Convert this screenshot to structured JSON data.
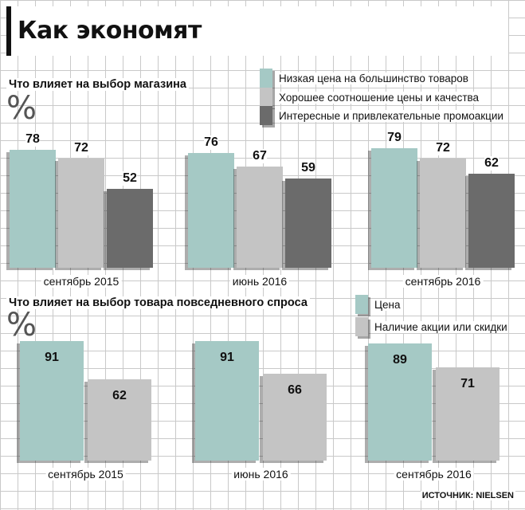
{
  "title": "Как экономят",
  "source": "ИСТОЧНИК: NIELSEN",
  "chart_data": [
    {
      "type": "bar",
      "title": "Что влияет на выбор магазина",
      "unit": "%",
      "categories": [
        "сентябрь 2015",
        "июнь 2016",
        "сентябрь 2016"
      ],
      "series": [
        {
          "name": "Низкая цена на большинство товаров",
          "color": "#a5c9c5",
          "values": [
            78,
            76,
            79
          ]
        },
        {
          "name": "Хорошее соотношение цены и качества",
          "color": "#c4c4c4",
          "values": [
            72,
            67,
            72
          ]
        },
        {
          "name": "Интересные и привлекательные промоакции",
          "color": "#6b6b6b",
          "values": [
            52,
            59,
            62
          ]
        }
      ]
    },
    {
      "type": "bar",
      "title": "Что влияет на выбор товара повседневного спроса",
      "unit": "%",
      "categories": [
        "сентябрь 2015",
        "июнь 2016",
        "сентябрь 2016"
      ],
      "series": [
        {
          "name": "Цена",
          "color": "#a5c9c5",
          "values": [
            91,
            91,
            89
          ]
        },
        {
          "name": "Наличие акции или скидки",
          "color": "#c4c4c4",
          "values": [
            62,
            66,
            71
          ]
        }
      ]
    }
  ]
}
